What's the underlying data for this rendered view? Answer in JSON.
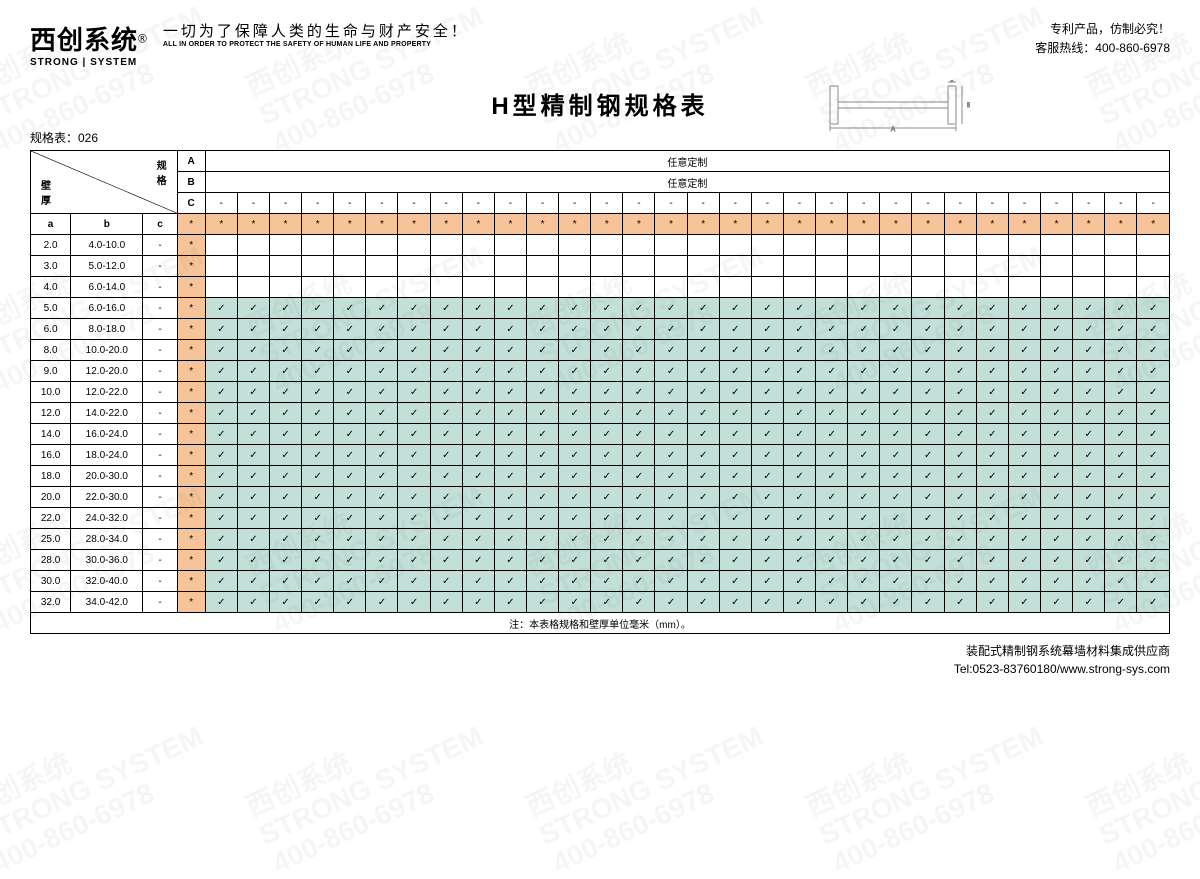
{
  "brand": {
    "cn": "西创系统",
    "en": "STRONG | SYSTEM",
    "reg": "®"
  },
  "slogan": {
    "cn": "一切为了保障人类的生命与财产安全！",
    "en": "ALL IN ORDER TO PROTECT THE SAFETY OF HUMAN LIFE AND PROPERTY"
  },
  "topright": {
    "line1": "专利产品，仿制必究！",
    "line2": "客服热线：400-860-6978"
  },
  "title": "H型精制钢规格表",
  "tableNo": "规格表：026",
  "cornerLabels": {
    "spec": "规格",
    "thick": "壁厚"
  },
  "rowLabels": {
    "A": "A",
    "B": "B",
    "C": "C"
  },
  "customText": "任意定制",
  "abc": {
    "a": "a",
    "b": "b",
    "c": "c"
  },
  "star": "*",
  "check": "✓",
  "dash": "-",
  "numDataCols": 30,
  "rows": [
    {
      "a": "2.0",
      "b": "4.0-10.0",
      "c": "-",
      "checks": false
    },
    {
      "a": "3.0",
      "b": "5.0-12.0",
      "c": "-",
      "checks": false
    },
    {
      "a": "4.0",
      "b": "6.0-14.0",
      "c": "-",
      "checks": false
    },
    {
      "a": "5.0",
      "b": "6.0-16.0",
      "c": "-",
      "checks": true
    },
    {
      "a": "6.0",
      "b": "8.0-18.0",
      "c": "-",
      "checks": true
    },
    {
      "a": "8.0",
      "b": "10.0-20.0",
      "c": "-",
      "checks": true
    },
    {
      "a": "9.0",
      "b": "12.0-20.0",
      "c": "-",
      "checks": true
    },
    {
      "a": "10.0",
      "b": "12.0-22.0",
      "c": "-",
      "checks": true
    },
    {
      "a": "12.0",
      "b": "14.0-22.0",
      "c": "-",
      "checks": true
    },
    {
      "a": "14.0",
      "b": "16.0-24.0",
      "c": "-",
      "checks": true
    },
    {
      "a": "16.0",
      "b": "18.0-24.0",
      "c": "-",
      "checks": true
    },
    {
      "a": "18.0",
      "b": "20.0-30.0",
      "c": "-",
      "checks": true
    },
    {
      "a": "20.0",
      "b": "22.0-30.0",
      "c": "-",
      "checks": true
    },
    {
      "a": "22.0",
      "b": "24.0-32.0",
      "c": "-",
      "checks": true
    },
    {
      "a": "25.0",
      "b": "28.0-34.0",
      "c": "-",
      "checks": true
    },
    {
      "a": "28.0",
      "b": "30.0-36.0",
      "c": "-",
      "checks": true
    },
    {
      "a": "30.0",
      "b": "32.0-40.0",
      "c": "-",
      "checks": true
    },
    {
      "a": "32.0",
      "b": "34.0-42.0",
      "c": "-",
      "checks": true
    }
  ],
  "footnote": "注：本表格规格和壁厚单位毫米（mm）。",
  "footer": {
    "line1": "装配式精制钢系统幕墙材料集成供应商",
    "line2": "Tel:0523-83760180/www.strong-sys.com"
  },
  "colors": {
    "orange": "#f7c499",
    "teal": "#c3e0d8",
    "border": "#000000",
    "bg": "#ffffff"
  },
  "colWidths": {
    "a": 40,
    "b": 72,
    "c": 34,
    "star": 28,
    "data": 32
  },
  "watermark": {
    "line1": "西创系统",
    "line2": "STRONG SYSTEM",
    "line3": "400-860-6978"
  }
}
